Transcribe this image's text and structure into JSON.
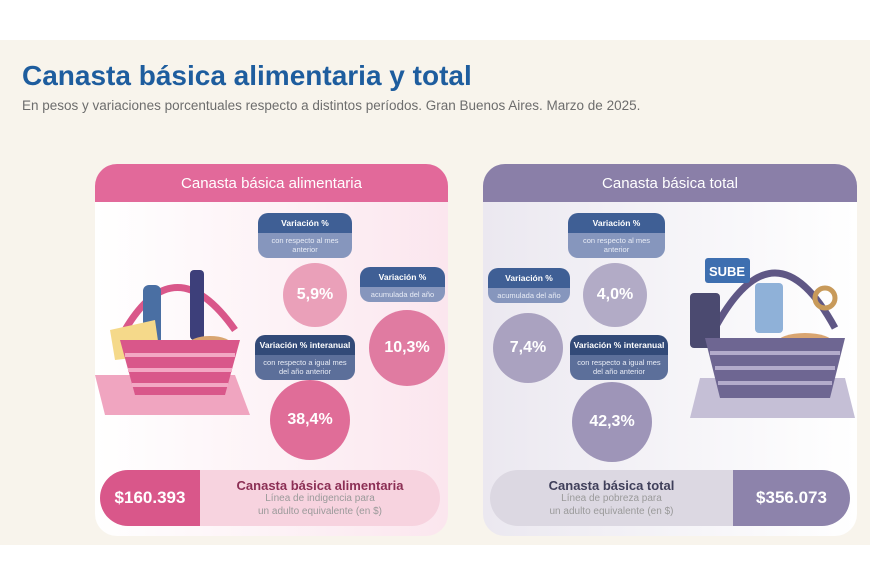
{
  "title": "Canasta básica alimentaria y total",
  "subtitle": "En pesos y variaciones porcentuales respecto a distintos períodos. Gran Buenos Aires. Marzo de 2025.",
  "left": {
    "header": "Canasta básica alimentaria",
    "monthly": {
      "label": "Variación %",
      "sub": "con respecto al mes anterior",
      "value": "5,9%"
    },
    "ytd": {
      "label": "Variación %",
      "sub": "acumulada del año",
      "value": "10,3%"
    },
    "yoy": {
      "label": "Variación % interanual",
      "sub": "con respecto a igual mes del año anterior",
      "value": "38,4%"
    },
    "amount": "$160.393",
    "name": "Canasta básica alimentaria",
    "desc1": "Línea de indigencia para",
    "desc2": "un adulto equivalente (en $)"
  },
  "right": {
    "header": "Canasta básica total",
    "monthly": {
      "label": "Variación %",
      "sub": "con respecto al mes anterior",
      "value": "4,0%"
    },
    "ytd": {
      "label": "Variación %",
      "sub": "acumulada del año",
      "value": "7,4%"
    },
    "yoy": {
      "label": "Variación % interanual",
      "sub": "con respecto a igual mes del año anterior",
      "value": "42,3%"
    },
    "amount": "$356.073",
    "name": "Canasta básica total",
    "desc1": "Línea de pobreza para",
    "desc2": "un adulto equivalente (en $)",
    "card_text": "SUBE"
  }
}
